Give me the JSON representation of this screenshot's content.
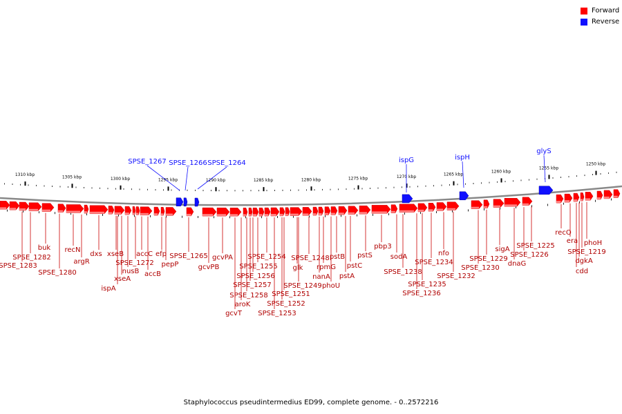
{
  "legend": [
    {
      "label": "Forward",
      "color": "#ff0000"
    },
    {
      "label": "Reverse",
      "color": "#1010ff"
    }
  ],
  "caption": "Staphylococcus pseudintermedius ED99, complete genome. - 0..2572216",
  "ruler": [
    {
      "label": "1310 kbp"
    },
    {
      "label": "1305 kbp"
    },
    {
      "label": "1300 kbp"
    },
    {
      "label": "1295 kbp"
    },
    {
      "label": "1290 kbp"
    },
    {
      "label": "1285 kbp"
    },
    {
      "label": "1280 kbp"
    },
    {
      "label": "1275 kbp"
    },
    {
      "label": "1270 kbp"
    },
    {
      "label": "1265 kbp"
    },
    {
      "label": "1260 kbp"
    },
    {
      "label": "1255 kbp"
    },
    {
      "label": "1250 kbp"
    }
  ],
  "reverse_genes": [
    "SPSE_1267",
    "SPSE_1266",
    "SPSE_1264",
    "ispG",
    "ispH",
    "glyS"
  ],
  "forward_genes": [
    "buk",
    "SPSE_1282",
    "SPSE_1283",
    "recN",
    "argR",
    "SPSE_1280",
    "dxs",
    "xseB",
    "ispA",
    "xseA",
    "nusB",
    "SPSE_1272",
    "accC",
    "accB",
    "efp",
    "pepP",
    "SPSE_1265",
    "gcvPA",
    "gcvPB",
    "SPSE_1254",
    "SPSE_1255",
    "SPSE_1256",
    "SPSE_1257",
    "SPSE_1258",
    "aroK",
    "gcvT",
    "SPSE_1251",
    "SPSE_1252",
    "SPSE_1253",
    "SPSE_1248",
    "SPSE_1249",
    "glk",
    "rpmG",
    "nanA",
    "pstB",
    "phoU",
    "pstC",
    "pstA",
    "pstS",
    "pbp3",
    "sodA",
    "SPSE_1238",
    "SPSE_1235",
    "SPSE_1236",
    "nfo",
    "SPSE_1234",
    "SPSE_1232",
    "SPSE_1229",
    "SPSE_1230",
    "sigA",
    "SPSE_1225",
    "SPSE_1226",
    "dnaG",
    "recO",
    "era",
    "phoH",
    "SPSE_1219",
    "dgkA",
    "cdd"
  ]
}
